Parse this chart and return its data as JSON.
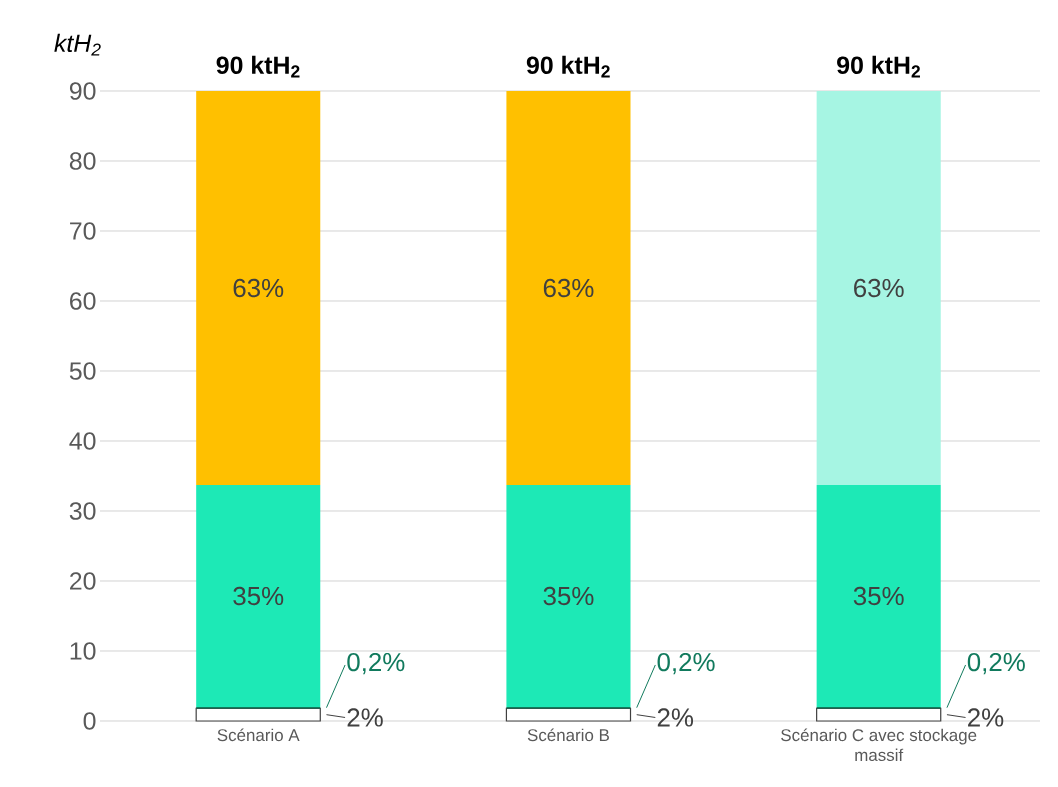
{
  "chart_data": {
    "type": "bar",
    "stacked": true,
    "ylabel": "ktH$_{2}$",
    "categories": [
      "Scénario A",
      "Scénario B",
      "Scénario C avec stockage massif"
    ],
    "series": [
      {
        "color": "#ffffff",
        "values": [
          1.8,
          1.8,
          1.8
        ]
      },
      {
        "color": "#117a5d",
        "values": [
          0.2,
          0.2,
          0.2
        ]
      },
      {
        "color": "#1de9b6",
        "values": [
          31.7,
          31.7,
          31.7
        ]
      },
      {
        "colors": [
          "#ffc000",
          "#ffc000",
          "#a6f5e3"
        ],
        "values": [
          56.3,
          56.3,
          56.3
        ]
      }
    ],
    "annotations": [
      "2%",
      "0,2%",
      "35%",
      "63%",
      "2%",
      "0,2%",
      "35%",
      "63%",
      "2%",
      "0,2%",
      "35%",
      "63%"
    ],
    "totals": [
      "90 ktH$_{2}$",
      "90 ktH$_{2}$",
      "90 ktH$_{2}$"
    ],
    "ylim": [
      0,
      90
    ],
    "yticks": [
      0,
      10,
      20,
      30,
      40,
      50,
      60,
      70,
      80,
      90
    ],
    "grid": "y"
  }
}
